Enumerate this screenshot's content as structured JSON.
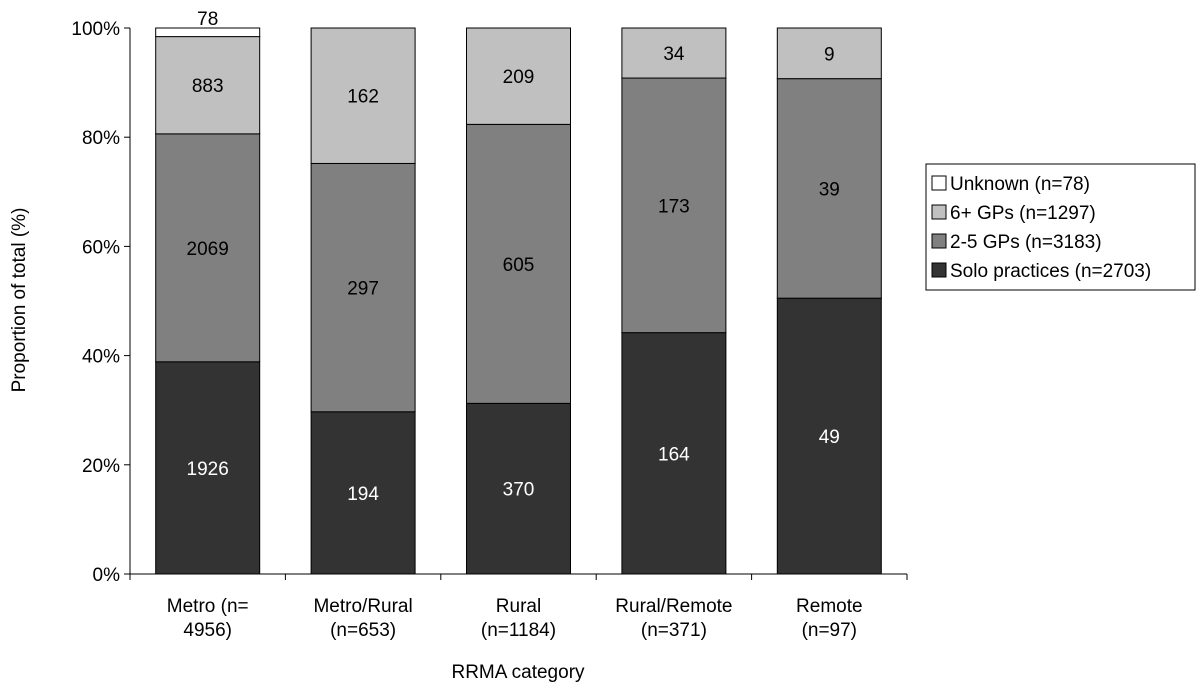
{
  "chart_data": {
    "type": "bar",
    "stacked": true,
    "normalized": true,
    "xlabel": "RRMA category",
    "ylabel": "Proportion of total (%)",
    "ylim": [
      0,
      100
    ],
    "yticks": [
      "0%",
      "20%",
      "40%",
      "60%",
      "80%",
      "100%"
    ],
    "grid": false,
    "legend_position": "right",
    "categories": [
      [
        "Metro (n=",
        "4956)"
      ],
      [
        "Metro/Rural",
        "(n=653)"
      ],
      [
        "Rural",
        "(n=1184)"
      ],
      [
        "Rural/Remote",
        "(n=371)"
      ],
      [
        "Remote",
        "(n=97)"
      ]
    ],
    "series": [
      {
        "name": "Solo practices (n=2703)",
        "color": "#333333",
        "label_color": "#ffffff",
        "values": [
          1926,
          194,
          370,
          164,
          49
        ]
      },
      {
        "name": "2-5 GPs (n=3183)",
        "color": "#808080",
        "label_color": "#000000",
        "values": [
          2069,
          297,
          605,
          173,
          39
        ]
      },
      {
        "name": "6+ GPs (n=1297)",
        "color": "#c0c0c0",
        "label_color": "#000000",
        "values": [
          883,
          162,
          209,
          34,
          9
        ]
      },
      {
        "name": "Unknown (n=78)",
        "color": "#ffffff",
        "label_color": "#000000",
        "values": [
          78,
          0,
          0,
          0,
          0
        ]
      }
    ]
  }
}
